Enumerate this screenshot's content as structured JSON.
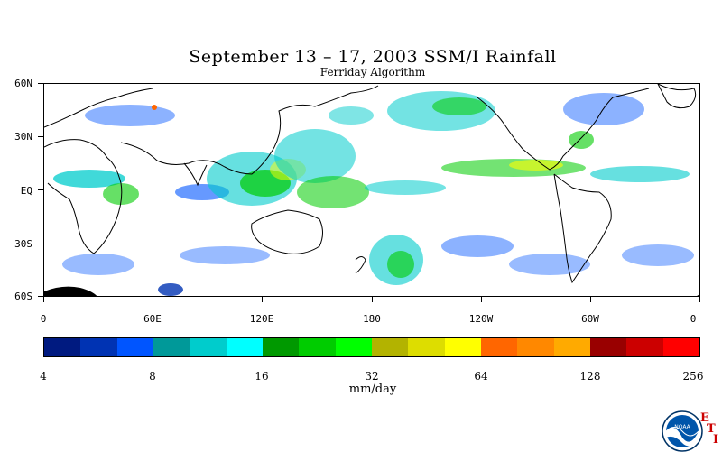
{
  "title": "September 13 – 17, 2003 SSM/I Rainfall",
  "subtitle": "Ferriday Algorithm",
  "lat_labels": [
    "60N",
    "30N",
    "EQ",
    "30S",
    "60S"
  ],
  "lon_labels": [
    "0",
    "60E",
    "120E",
    "180",
    "120W",
    "60W",
    "0"
  ],
  "colorbar": {
    "colors": [
      "#001a80",
      "#0033b3",
      "#0055ff",
      "#009999",
      "#00cccc",
      "#00ffff",
      "#009900",
      "#00cc00",
      "#00ff00",
      "#b3b300",
      "#dddd00",
      "#ffff00",
      "#ff6600",
      "#ff8800",
      "#ffaa00",
      "#990000",
      "#cc0000",
      "#ff0000"
    ],
    "tick_labels": [
      "4",
      "8",
      "16",
      "32",
      "64",
      "128",
      "256"
    ],
    "units": "mm/day"
  },
  "logo": {
    "name": "NOAA",
    "letters": [
      "E",
      "T",
      "I"
    ]
  }
}
